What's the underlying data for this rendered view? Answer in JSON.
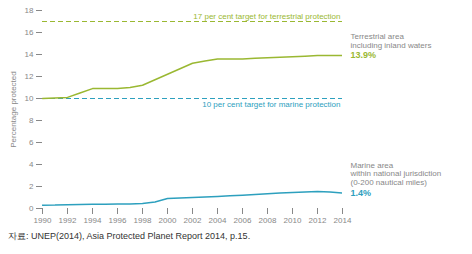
{
  "chart_data": {
    "type": "line",
    "x": [
      1990,
      1991,
      1992,
      1993,
      1994,
      1995,
      1996,
      1997,
      1998,
      1999,
      2000,
      2001,
      2002,
      2003,
      2004,
      2005,
      2006,
      2007,
      2008,
      2009,
      2010,
      2011,
      2012,
      2013,
      2014
    ],
    "series": [
      {
        "color": "#9ab832",
        "annotation": [
          "Terrestrial area",
          "including inland waters"
        ],
        "end_label": "13.9%",
        "values": [
          10.0,
          10.05,
          10.1,
          10.5,
          10.9,
          10.9,
          10.9,
          11.0,
          11.2,
          11.7,
          12.2,
          12.7,
          13.2,
          13.4,
          13.6,
          13.6,
          13.6,
          13.65,
          13.7,
          13.75,
          13.8,
          13.85,
          13.9,
          13.9,
          13.9
        ]
      },
      {
        "color": "#2da0be",
        "annotation": [
          "Marine area",
          "within national jurisdiction",
          "(0-200 nautical miles)"
        ],
        "end_label": "1.4%",
        "values": [
          0.3,
          0.31,
          0.35,
          0.36,
          0.38,
          0.39,
          0.4,
          0.42,
          0.45,
          0.6,
          0.9,
          0.95,
          1.0,
          1.05,
          1.1,
          1.15,
          1.2,
          1.27,
          1.35,
          1.4,
          1.45,
          1.5,
          1.55,
          1.5,
          1.4
        ]
      }
    ],
    "targets": [
      {
        "value": 17,
        "label": "17 per cent target for terrestrial protection",
        "color": "#9ab832",
        "line_style": "dashed"
      },
      {
        "value": 10,
        "label": "10 per cent target for marine protection",
        "color": "#2da0be",
        "line_style": "dashed"
      }
    ],
    "ylabel": "Percentage protected",
    "xlim": [
      1990,
      2014
    ],
    "xticks": [
      1990,
      1992,
      1994,
      1996,
      1998,
      2000,
      2002,
      2004,
      2006,
      2008,
      2010,
      2012,
      2014
    ],
    "ylim": [
      0,
      18
    ],
    "yticks": [
      0,
      2,
      4,
      6,
      8,
      10,
      12,
      14,
      16,
      18
    ],
    "grid": false,
    "source": "자료: UNEP(2014), Asia Protected Planet Report 2014, p.15."
  }
}
